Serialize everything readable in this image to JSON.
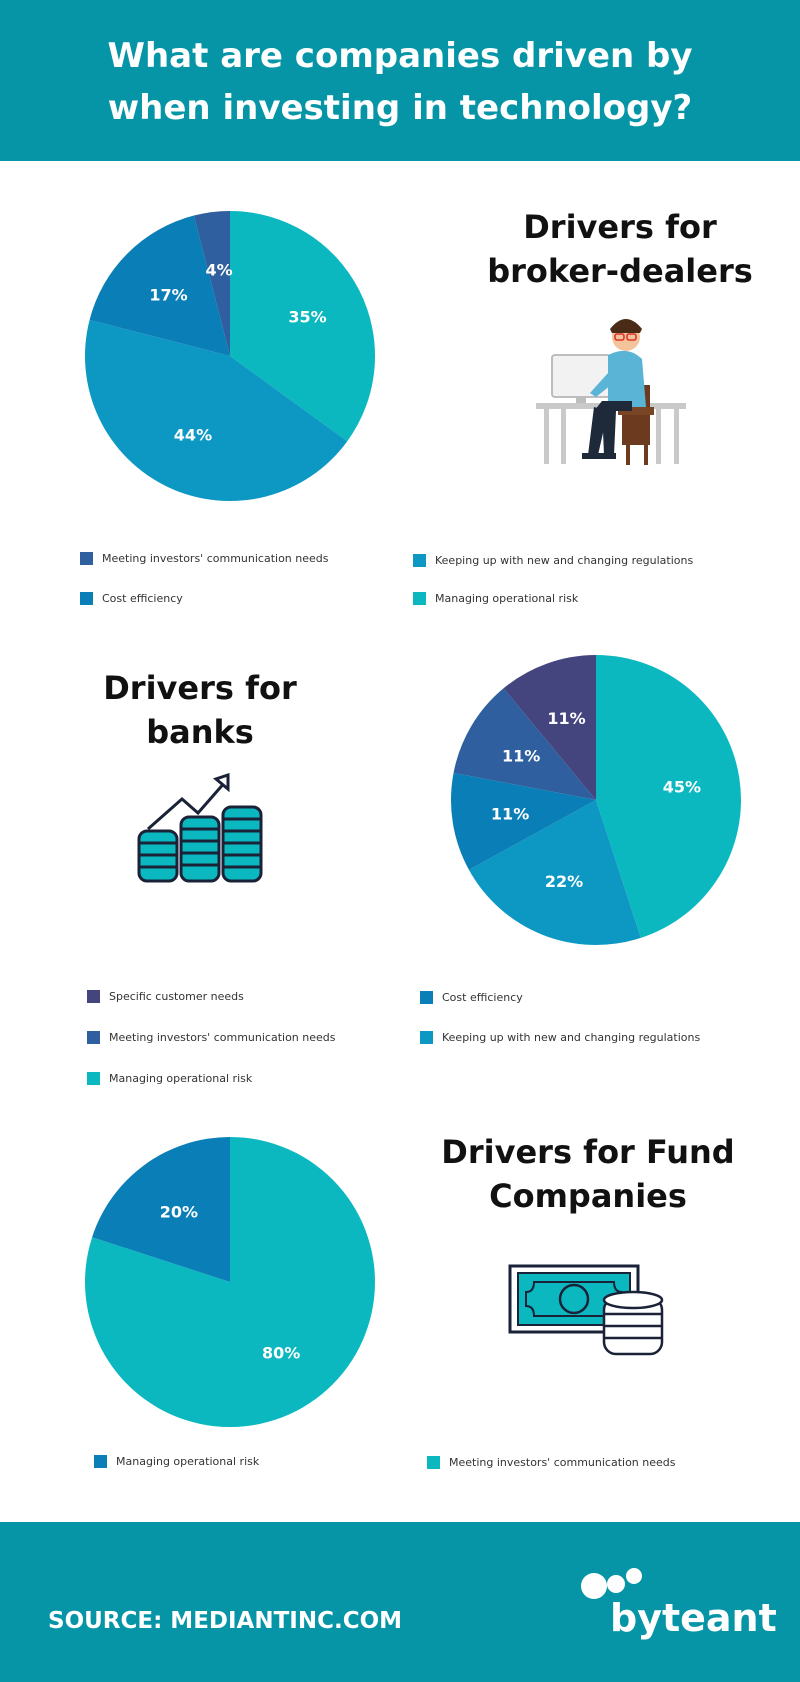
{
  "header": {
    "title_line1": "What are companies driven by",
    "title_line2": "when investing in technology?"
  },
  "sections": {
    "broker": {
      "title_line1": "Drivers for",
      "title_line2": "broker-dealers",
      "legend": [
        {
          "label": "Meeting investors' communication needs",
          "color": "#2f5f9e"
        },
        {
          "label": "Cost efficiency",
          "color": "#0a7eb6"
        },
        {
          "label": "Keeping up with new and changing regulations",
          "color": "#0d98c4"
        },
        {
          "label": "Managing operational risk",
          "color": "#0bb8c0"
        }
      ]
    },
    "banks": {
      "title_line1": "Drivers for",
      "title_line2": "banks",
      "legend": [
        {
          "label": "Specific customer needs",
          "color": "#44457e"
        },
        {
          "label": "Meeting investors' communication needs",
          "color": "#2f5f9e"
        },
        {
          "label": "Managing operational risk",
          "color": "#0bb8c0"
        },
        {
          "label": "Cost efficiency",
          "color": "#0a7eb6"
        },
        {
          "label": "Keeping up with new and changing regulations",
          "color": "#0d98c4"
        }
      ]
    },
    "fund": {
      "title_line1": "Drivers for Fund",
      "title_line2": "Companies",
      "legend": [
        {
          "label": "Managing operational risk",
          "color": "#0a7eb6"
        },
        {
          "label": "Meeting investors' communication needs",
          "color": "#0bb8c0"
        }
      ]
    }
  },
  "chart_data": [
    {
      "type": "pie",
      "title": "Drivers for broker-dealers",
      "slices": [
        {
          "label": "Managing operational risk",
          "value": 35,
          "display": "35%",
          "color": "#0bb8c0"
        },
        {
          "label": "Keeping up with new and changing regulations",
          "value": 44,
          "display": "44%",
          "color": "#0d98c4"
        },
        {
          "label": "Cost efficiency",
          "value": 17,
          "display": "17%",
          "color": "#0a7eb6"
        },
        {
          "label": "Meeting investors' communication needs",
          "value": 4,
          "display": "4%",
          "color": "#2f5f9e"
        }
      ]
    },
    {
      "type": "pie",
      "title": "Drivers for banks",
      "slices": [
        {
          "label": "Managing operational risk",
          "value": 45,
          "display": "45%",
          "color": "#0bb8c0"
        },
        {
          "label": "Keeping up with new and changing regulations",
          "value": 22,
          "display": "22%",
          "color": "#0d98c4"
        },
        {
          "label": "Cost efficiency",
          "value": 11,
          "display": "11%",
          "color": "#0a7eb6"
        },
        {
          "label": "Meeting investors' communication needs",
          "value": 11,
          "display": "11%",
          "color": "#2f5f9e"
        },
        {
          "label": "Specific customer needs",
          "value": 11,
          "display": "11%",
          "color": "#44457e"
        }
      ]
    },
    {
      "type": "pie",
      "title": "Drivers for Fund Companies",
      "slices": [
        {
          "label": "Meeting investors' communication needs",
          "value": 80,
          "display": "80%",
          "color": "#0bb8c0"
        },
        {
          "label": "Managing operational risk",
          "value": 20,
          "display": "20%",
          "color": "#0a7eb6"
        }
      ]
    }
  ],
  "footer": {
    "source": "SOURCE: MEDIANTINC.COM",
    "logo_text": "byteant"
  }
}
